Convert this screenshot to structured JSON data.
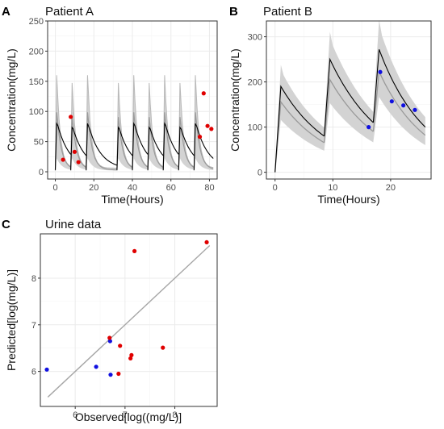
{
  "figure": {
    "colors": {
      "band": "#d3d3d3",
      "outer_spikes": "#b8b8b8",
      "median": "#9a9a9a",
      "fit": "#000000",
      "red_obs": "#e00000",
      "blue_obs": "#1010e0",
      "identity_line": "#a6a6a6"
    }
  },
  "chart_data": [
    {
      "panel_tag": "A",
      "title": "Patient A",
      "type": "line",
      "xlabel": "Time(Hours)",
      "ylabel": "Concentration(mg/L)",
      "xlim": [
        -4,
        84
      ],
      "ylim": [
        -12,
        250
      ],
      "xticks": [
        0,
        20,
        40,
        60,
        80
      ],
      "yticks": [
        0,
        50,
        100,
        150,
        200,
        250
      ],
      "dosing": {
        "interval_hours": 8,
        "dose_times": [
          0,
          8,
          16,
          32,
          40,
          48,
          56,
          64,
          72
        ],
        "end_time": 82
      },
      "band_peak_range": [
        58,
        160
      ],
      "fit_peak": 80,
      "observed": [
        {
          "x": 4,
          "y": 20,
          "group": "red"
        },
        {
          "x": 8,
          "y": 91,
          "group": "red"
        },
        {
          "x": 10,
          "y": 33,
          "group": "red"
        },
        {
          "x": 12,
          "y": 16,
          "group": "red"
        },
        {
          "x": 75,
          "y": 58,
          "group": "red"
        },
        {
          "x": 77,
          "y": 130,
          "group": "red"
        },
        {
          "x": 79,
          "y": 76,
          "group": "red"
        },
        {
          "x": 81,
          "y": 71,
          "group": "red"
        }
      ],
      "grid": true
    },
    {
      "panel_tag": "B",
      "title": "Patient B",
      "type": "line",
      "xlabel": "Time(Hours)",
      "ylabel": "Concentration(mg/L)",
      "xlim": [
        -1.5,
        27
      ],
      "ylim": [
        -15,
        335
      ],
      "xticks": [
        0,
        10,
        20
      ],
      "yticks": [
        0,
        100,
        200,
        300
      ],
      "dosing": {
        "dose_times": [
          0,
          8.5,
          17
        ],
        "end_time": 26
      },
      "fit_peaks": [
        190,
        250,
        272
      ],
      "fit_troughs": [
        80,
        110,
        100
      ],
      "observed": [
        {
          "x": 16.2,
          "y": 100,
          "group": "blue"
        },
        {
          "x": 18.2,
          "y": 222,
          "group": "blue"
        },
        {
          "x": 20.2,
          "y": 157,
          "group": "blue"
        },
        {
          "x": 22.2,
          "y": 148,
          "group": "blue"
        },
        {
          "x": 24.2,
          "y": 138,
          "group": "blue"
        }
      ],
      "grid": true
    },
    {
      "panel_tag": "C",
      "title": "Urine data",
      "type": "scatter",
      "xlabel": "Observed[log((mg/L)]",
      "ylabel": "Predicted[log(mg/L)]",
      "xlim": [
        5.3,
        8.85
      ],
      "ylim": [
        5.25,
        8.95
      ],
      "xticks": [
        6,
        7,
        8
      ],
      "yticks": [
        6,
        7,
        8
      ],
      "identity_line": {
        "from": [
          5.45,
          5.45
        ],
        "to": [
          8.7,
          8.7
        ]
      },
      "points": [
        {
          "x": 5.43,
          "y": 6.04,
          "group": "blue"
        },
        {
          "x": 6.42,
          "y": 6.1,
          "group": "blue"
        },
        {
          "x": 6.7,
          "y": 6.65,
          "group": "blue"
        },
        {
          "x": 6.71,
          "y": 5.93,
          "group": "blue"
        },
        {
          "x": 6.69,
          "y": 6.72,
          "group": "red"
        },
        {
          "x": 6.9,
          "y": 6.55,
          "group": "red"
        },
        {
          "x": 6.87,
          "y": 5.95,
          "group": "red"
        },
        {
          "x": 7.11,
          "y": 6.28,
          "group": "red"
        },
        {
          "x": 7.13,
          "y": 6.35,
          "group": "red"
        },
        {
          "x": 7.19,
          "y": 8.58,
          "group": "red"
        },
        {
          "x": 7.76,
          "y": 6.51,
          "group": "red"
        },
        {
          "x": 8.64,
          "y": 8.77,
          "group": "red"
        }
      ],
      "grid": true
    }
  ]
}
